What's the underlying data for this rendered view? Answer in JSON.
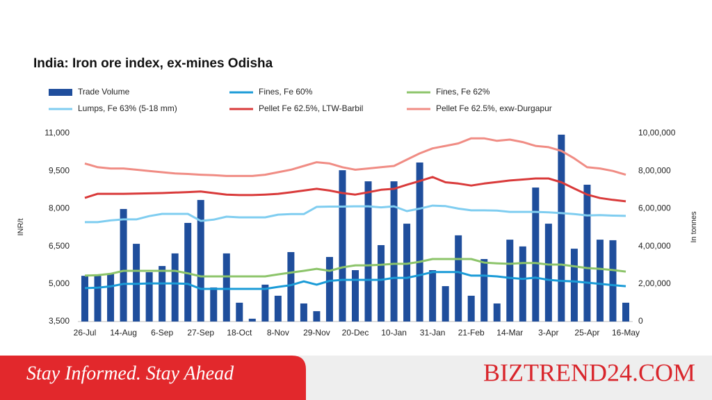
{
  "chart_data": {
    "type": "combo",
    "title": "India: Iron ore index, ex-mines Odisha",
    "y_label": "INR/t",
    "y2_label": "In tonnes",
    "categories": [
      "26-Jul",
      null,
      null,
      "14-Aug",
      null,
      null,
      "6-Sep",
      null,
      null,
      "27-Sep",
      null,
      null,
      "18-Oct",
      null,
      null,
      "8-Nov",
      null,
      null,
      "29-Nov",
      null,
      null,
      "20-Dec",
      null,
      null,
      "10-Jan",
      null,
      null,
      "31-Jan",
      null,
      null,
      "21-Feb",
      null,
      null,
      "14-Mar",
      null,
      null,
      "3-Apr",
      null,
      null,
      "25-Apr",
      null,
      null,
      "16-May"
    ],
    "ylim": [
      3500,
      11000
    ],
    "yticks": [
      {
        "value": 3500,
        "label": "3,500"
      },
      {
        "value": 5000,
        "label": "5,000"
      },
      {
        "value": 6500,
        "label": "6,500"
      },
      {
        "value": 8000,
        "label": "8,000"
      },
      {
        "value": 9500,
        "label": "9,500"
      },
      {
        "value": 11000,
        "label": "11,000"
      }
    ],
    "y2lim": [
      0,
      1000000
    ],
    "y2ticks": [
      0,
      {
        "value": 200000,
        "label": "2,00,000"
      },
      {
        "value": 400000,
        "label": "4,00,000"
      },
      {
        "value": 600000,
        "label": "6,00,000"
      },
      {
        "value": 800000,
        "label": "8,00,000"
      },
      {
        "value": 1000000,
        "label": "10,00,000"
      }
    ],
    "grid": false,
    "series": [
      {
        "name": "Trade Volume",
        "type": "bar",
        "axis": "y2",
        "color": "#1f4e9c",
        "values": [
          243000,
          243000,
          255000,
          598000,
          413000,
          262000,
          295000,
          362000,
          524000,
          646000,
          181000,
          362000,
          100000,
          15000,
          196000,
          137000,
          369000,
          96000,
          55000,
          343000,
          804000,
          273000,
          745000,
          406000,
          745000,
          520000,
          845000,
          273000,
          188000,
          458000,
          137000,
          332000,
          96000,
          435000,
          399000,
          712000,
          520000,
          993000,
          387000,
          727000,
          435000,
          432000,
          100000
        ]
      },
      {
        "name": "Fines, Fe 60%",
        "type": "line",
        "color": "#1a9bd7",
        "values": [
          4830,
          4850,
          4900,
          5000,
          5000,
          5020,
          5020,
          5020,
          5000,
          4800,
          4800,
          4800,
          4800,
          4800,
          4800,
          4880,
          4950,
          5100,
          4970,
          5120,
          5160,
          5160,
          5160,
          5160,
          5240,
          5240,
          5350,
          5470,
          5470,
          5470,
          5330,
          5330,
          5300,
          5240,
          5200,
          5250,
          5160,
          5120,
          5100,
          5050,
          5000,
          4950,
          4910
        ]
      },
      {
        "name": "Fines, Fe 62%",
        "type": "line",
        "color": "#8cc46a",
        "values": [
          5330,
          5350,
          5400,
          5520,
          5520,
          5520,
          5520,
          5520,
          5420,
          5300,
          5300,
          5300,
          5300,
          5300,
          5300,
          5380,
          5450,
          5520,
          5600,
          5520,
          5660,
          5740,
          5740,
          5760,
          5800,
          5800,
          5880,
          5990,
          5990,
          5990,
          5990,
          5850,
          5820,
          5800,
          5830,
          5830,
          5770,
          5770,
          5700,
          5630,
          5600,
          5550,
          5490
        ]
      },
      {
        "name": "Lumps, Fe 63% (5-18 mm)",
        "type": "line",
        "color": "#7fcdf0",
        "values": [
          7460,
          7460,
          7530,
          7570,
          7570,
          7700,
          7790,
          7790,
          7790,
          7510,
          7560,
          7680,
          7650,
          7650,
          7650,
          7760,
          7780,
          7780,
          8070,
          8080,
          8080,
          8090,
          8090,
          8050,
          8090,
          7900,
          8000,
          8120,
          8100,
          8000,
          7930,
          7930,
          7920,
          7870,
          7870,
          7870,
          7850,
          7820,
          7780,
          7730,
          7740,
          7720,
          7710
        ]
      },
      {
        "name": "Pellet Fe 62.5%, LTW-Barbil",
        "type": "line",
        "color": "#d93a3a",
        "values": [
          8430,
          8590,
          8590,
          8590,
          8600,
          8610,
          8620,
          8640,
          8660,
          8680,
          8620,
          8560,
          8540,
          8540,
          8560,
          8590,
          8650,
          8720,
          8790,
          8720,
          8620,
          8560,
          8650,
          8750,
          8790,
          8950,
          9100,
          9260,
          9050,
          9000,
          8920,
          9000,
          9060,
          9120,
          9160,
          9200,
          9200,
          9050,
          8800,
          8560,
          8420,
          8350,
          8290
        ]
      },
      {
        "name": "Pellet Fe  62.5%, exw-Durgapur",
        "type": "line",
        "color": "#f08c84",
        "values": [
          9800,
          9650,
          9600,
          9600,
          9550,
          9500,
          9450,
          9400,
          9380,
          9350,
          9330,
          9300,
          9300,
          9300,
          9350,
          9450,
          9550,
          9700,
          9850,
          9800,
          9650,
          9550,
          9600,
          9650,
          9700,
          9950,
          10200,
          10400,
          10500,
          10600,
          10800,
          10800,
          10700,
          10750,
          10650,
          10500,
          10450,
          10300,
          10000,
          9650,
          9600,
          9500,
          9350
        ]
      }
    ]
  },
  "banner": {
    "tagline": "Stay Informed. Stay Ahead",
    "brand": "BIZTREND24.COM"
  }
}
